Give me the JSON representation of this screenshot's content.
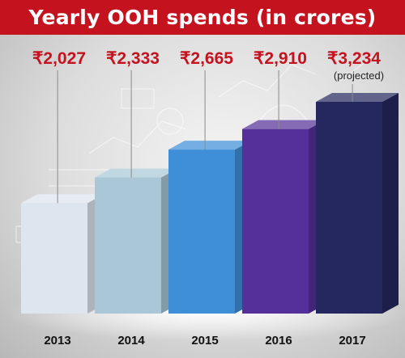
{
  "title": "Yearly OOH spends (in crores)",
  "colors": {
    "title_bar": "#c4121f",
    "value_text": "#c4121f",
    "year_text": "#111111"
  },
  "chart_data": {
    "type": "bar",
    "title": "Yearly OOH spends (in crores)",
    "xlabel": "",
    "ylabel": "",
    "categories": [
      "2013",
      "2014",
      "2015",
      "2016",
      "2017"
    ],
    "values": [
      2027,
      2333,
      2665,
      2910,
      3234
    ],
    "value_labels": [
      "₹2,027",
      "₹2,333",
      "₹2,665",
      "₹2,910",
      "₹3,234"
    ],
    "notes": [
      "",
      "",
      "",
      "",
      "(projected)"
    ],
    "bar_colors": [
      "#dde5ee",
      "#a9c7d6",
      "#3f8fd8",
      "#55309a",
      "#24285e"
    ],
    "grid": false,
    "legend": "none"
  }
}
